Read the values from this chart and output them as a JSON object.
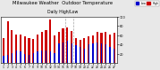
{
  "title": "Milwaukee Weather  Outdoor Temperature",
  "subtitle": "Daily High/Low",
  "highs": [
    55,
    90,
    72,
    62,
    62,
    58,
    55,
    52,
    62,
    68,
    72,
    95,
    60,
    68,
    75,
    78,
    70,
    55,
    50,
    55,
    58,
    60,
    68,
    65,
    68,
    62,
    65
  ],
  "lows": [
    15,
    18,
    22,
    28,
    25,
    20,
    18,
    22,
    25,
    28,
    28,
    25,
    22,
    42,
    45,
    48,
    42,
    38,
    35,
    32,
    40,
    42,
    45,
    42,
    40,
    35,
    32
  ],
  "dashed_lines": [
    14.5,
    16.5
  ],
  "ylim": [
    0,
    100
  ],
  "ytick_vals": [
    20,
    40,
    60,
    80,
    100
  ],
  "ytick_labels": [
    "20",
    "40",
    "60",
    "80",
    "100"
  ],
  "bar_width": 0.45,
  "high_color": "#cc0000",
  "low_color": "#0000cc",
  "bg_color": "#e8e8e8",
  "plot_bg": "#ffffff",
  "legend_high": "High",
  "legend_low": "Low",
  "title_fontsize": 3.8,
  "tick_fontsize": 2.5,
  "n_days": 27
}
